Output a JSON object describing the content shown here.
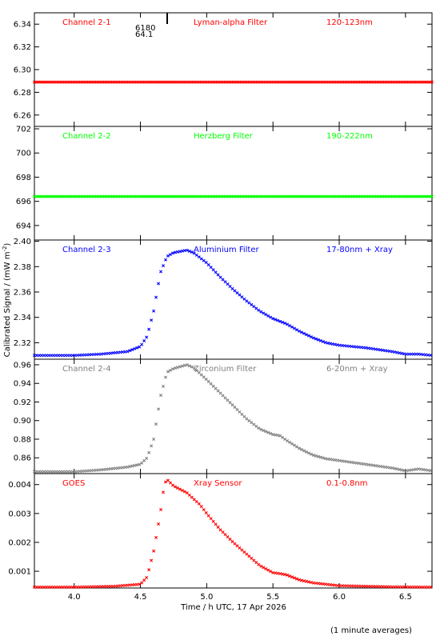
{
  "chart_data": {
    "type": "scatter",
    "xlabel": "Time / h UTC, 17 Apr 2026",
    "ylabel": "Calibrated Signal / (mW m",
    "ylabel_sup": "-2",
    "ylabel_close": ")",
    "footnote": "(1 minute averages)",
    "xlim": [
      3.7,
      6.7
    ],
    "xticks": [
      4.0,
      4.5,
      5.0,
      5.5,
      6.0,
      6.5
    ],
    "xtick_labels": [
      "4.0",
      "4.5",
      "5.0",
      "5.5",
      "6.0",
      "6.5"
    ],
    "panel1_annotations": [
      "6180",
      "64.1"
    ],
    "panels": [
      {
        "channel": "Channel 2-1",
        "filter": "Lyman-alpha Filter",
        "band": "120-123nm",
        "color": "#ff0000",
        "ylim": [
          6.25,
          6.35
        ],
        "yticks": [
          6.26,
          6.28,
          6.3,
          6.32,
          6.34
        ],
        "ytick_labels": [
          "6.26",
          "6.28",
          "6.30",
          "6.32",
          "6.34"
        ],
        "profile": "flat",
        "level": 6.289
      },
      {
        "channel": "Channel 2-2",
        "filter": "Herzberg Filter",
        "band": "190-222nm",
        "color": "#00ff00",
        "ylim": [
          692.8,
          702.2
        ],
        "yticks": [
          694,
          696,
          698,
          700,
          702
        ],
        "ytick_labels": [
          "694",
          "696",
          "698",
          "700",
          "702"
        ],
        "profile": "flat",
        "level": 696.4
      },
      {
        "channel": "Channel 2-3",
        "filter": "Aluminium Filter",
        "band": "17-80nm + Xray",
        "color": "#0000ff",
        "ylim": [
          2.307,
          2.401
        ],
        "yticks": [
          2.32,
          2.34,
          2.36,
          2.38,
          2.4
        ],
        "ytick_labels": [
          "2.32",
          "2.34",
          "2.36",
          "2.38",
          "2.40"
        ],
        "profile": "flare",
        "curve": [
          [
            3.7,
            2.31
          ],
          [
            4.0,
            2.31
          ],
          [
            4.2,
            2.311
          ],
          [
            4.4,
            2.313
          ],
          [
            4.5,
            2.317
          ],
          [
            4.55,
            2.325
          ],
          [
            4.6,
            2.345
          ],
          [
            4.65,
            2.375
          ],
          [
            4.7,
            2.388
          ],
          [
            4.75,
            2.391
          ],
          [
            4.8,
            2.392
          ],
          [
            4.85,
            2.393
          ],
          [
            4.9,
            2.391
          ],
          [
            5.0,
            2.383
          ],
          [
            5.1,
            2.372
          ],
          [
            5.2,
            2.362
          ],
          [
            5.3,
            2.353
          ],
          [
            5.4,
            2.345
          ],
          [
            5.5,
            2.339
          ],
          [
            5.55,
            2.337
          ],
          [
            5.6,
            2.335
          ],
          [
            5.7,
            2.329
          ],
          [
            5.8,
            2.324
          ],
          [
            5.9,
            2.32
          ],
          [
            6.0,
            2.318
          ],
          [
            6.2,
            2.316
          ],
          [
            6.4,
            2.313
          ],
          [
            6.5,
            2.311
          ],
          [
            6.6,
            2.311
          ],
          [
            6.7,
            2.31
          ]
        ]
      },
      {
        "channel": "Channel 2-4",
        "filter": "Zirconium Filter",
        "band": "6-20nm + Xray",
        "color": "#808080",
        "ylim": [
          0.843,
          0.966
        ],
        "yticks": [
          0.86,
          0.88,
          0.9,
          0.92,
          0.94,
          0.96
        ],
        "ytick_labels": [
          "0.86",
          "0.88",
          "0.90",
          "0.92",
          "0.94",
          "0.96"
        ],
        "profile": "flare",
        "curve": [
          [
            3.7,
            0.845
          ],
          [
            4.0,
            0.845
          ],
          [
            4.2,
            0.847
          ],
          [
            4.4,
            0.85
          ],
          [
            4.5,
            0.853
          ],
          [
            4.55,
            0.86
          ],
          [
            4.6,
            0.88
          ],
          [
            4.65,
            0.925
          ],
          [
            4.7,
            0.952
          ],
          [
            4.75,
            0.956
          ],
          [
            4.8,
            0.958
          ],
          [
            4.85,
            0.96
          ],
          [
            4.9,
            0.957
          ],
          [
            5.0,
            0.944
          ],
          [
            5.1,
            0.93
          ],
          [
            5.2,
            0.916
          ],
          [
            5.3,
            0.902
          ],
          [
            5.4,
            0.891
          ],
          [
            5.5,
            0.885
          ],
          [
            5.55,
            0.884
          ],
          [
            5.6,
            0.879
          ],
          [
            5.7,
            0.87
          ],
          [
            5.8,
            0.863
          ],
          [
            5.9,
            0.859
          ],
          [
            6.0,
            0.857
          ],
          [
            6.2,
            0.853
          ],
          [
            6.4,
            0.849
          ],
          [
            6.5,
            0.846
          ],
          [
            6.6,
            0.848
          ],
          [
            6.7,
            0.846
          ]
        ]
      },
      {
        "channel": "GOES",
        "filter": "Xray Sensor",
        "band": "0.1-0.8nm",
        "color": "#ff0000",
        "ylim": [
          0.00042,
          0.00438
        ],
        "yticks": [
          0.001,
          0.002,
          0.003,
          0.004
        ],
        "ytick_labels": [
          "0.001",
          "0.002",
          "0.003",
          "0.004"
        ],
        "profile": "flare",
        "curve": [
          [
            3.7,
            0.00045
          ],
          [
            4.0,
            0.00045
          ],
          [
            4.3,
            0.00048
          ],
          [
            4.5,
            0.00055
          ],
          [
            4.55,
            0.0008
          ],
          [
            4.6,
            0.0017
          ],
          [
            4.65,
            0.003
          ],
          [
            4.68,
            0.004
          ],
          [
            4.7,
            0.00418
          ],
          [
            4.75,
            0.00395
          ],
          [
            4.85,
            0.00372
          ],
          [
            4.95,
            0.0033
          ],
          [
            5.0,
            0.003
          ],
          [
            5.1,
            0.00245
          ],
          [
            5.2,
            0.002
          ],
          [
            5.3,
            0.0016
          ],
          [
            5.4,
            0.0012
          ],
          [
            5.5,
            0.00095
          ],
          [
            5.55,
            0.00092
          ],
          [
            5.6,
            0.00088
          ],
          [
            5.7,
            0.0007
          ],
          [
            5.8,
            0.0006
          ],
          [
            5.9,
            0.00055
          ],
          [
            6.0,
            0.0005
          ],
          [
            6.2,
            0.00048
          ],
          [
            6.4,
            0.00046
          ],
          [
            6.7,
            0.00045
          ]
        ]
      }
    ]
  }
}
